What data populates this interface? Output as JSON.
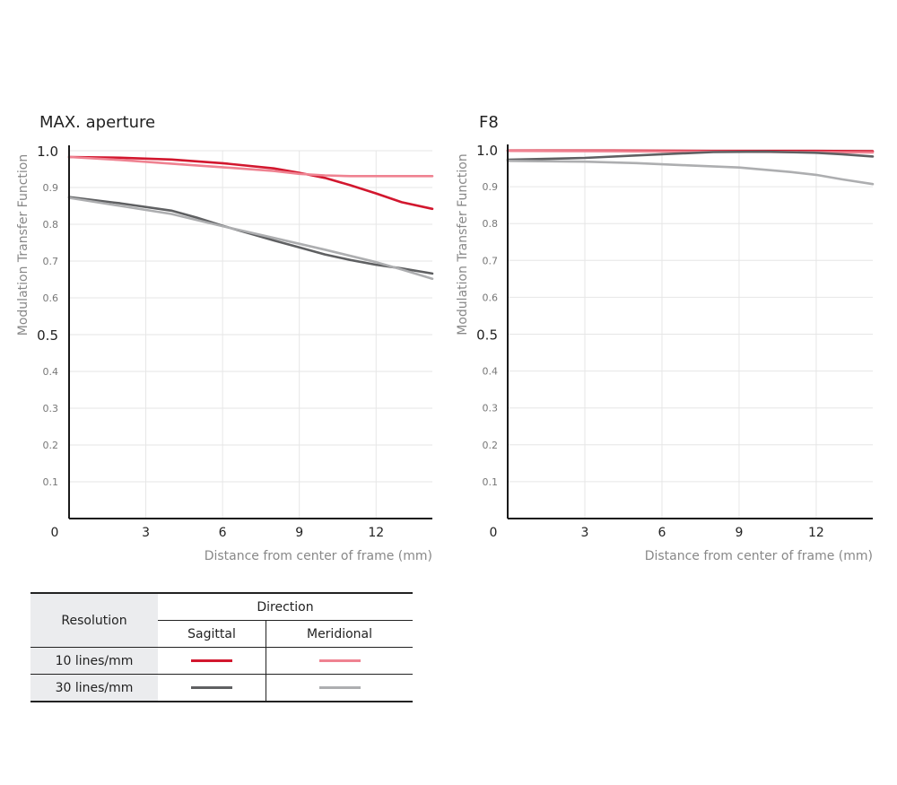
{
  "chart_data": [
    {
      "type": "line",
      "title": "MAX. aperture",
      "ylabel": "Modulation Transfer Function",
      "xlabel": "Distance from center of frame (mm)",
      "xlim": [
        0,
        14.2
      ],
      "ylim": [
        0,
        1.0
      ],
      "x_ticks": [
        "0",
        "3",
        "6",
        "9",
        "12"
      ],
      "y_ticks": [
        "0.1",
        "0.2",
        "0.3",
        "0.4",
        "0.5",
        "0.6",
        "0.7",
        "0.8",
        "0.9",
        "1.0"
      ],
      "grid": true,
      "series": [
        {
          "key": "s10",
          "color": "#d2172e",
          "width": 2.6,
          "x": [
            0,
            2,
            4,
            6,
            8,
            9,
            10,
            11,
            12,
            13,
            14.2
          ],
          "y": [
            0.983,
            0.981,
            0.976,
            0.966,
            0.952,
            0.94,
            0.926,
            0.906,
            0.884,
            0.86,
            0.842
          ]
        },
        {
          "key": "m10",
          "color": "#ef8291",
          "width": 2.6,
          "x": [
            0,
            2,
            4,
            6,
            8,
            9,
            10,
            11,
            12,
            14.2
          ],
          "y": [
            0.983,
            0.975,
            0.965,
            0.955,
            0.945,
            0.937,
            0.933,
            0.931,
            0.931,
            0.931
          ]
        },
        {
          "key": "s30",
          "color": "#5f6062",
          "width": 2.6,
          "x": [
            0,
            2,
            4,
            5,
            6,
            7,
            8,
            9,
            10,
            11,
            12,
            13,
            14.2
          ],
          "y": [
            0.874,
            0.857,
            0.837,
            0.818,
            0.796,
            0.776,
            0.756,
            0.737,
            0.718,
            0.703,
            0.69,
            0.68,
            0.666
          ]
        },
        {
          "key": "m30",
          "color": "#adaeb0",
          "width": 2.6,
          "x": [
            0,
            2,
            4,
            6,
            8,
            10,
            12,
            13,
            14.2
          ],
          "y": [
            0.872,
            0.85,
            0.828,
            0.795,
            0.763,
            0.731,
            0.697,
            0.677,
            0.652
          ]
        }
      ]
    },
    {
      "type": "line",
      "title": "F8",
      "ylabel": "Modulation Transfer Function",
      "xlabel": "Distance from center of frame (mm)",
      "xlim": [
        0,
        14.2
      ],
      "ylim": [
        0,
        1.0
      ],
      "x_ticks": [
        "0",
        "3",
        "6",
        "9",
        "12"
      ],
      "y_ticks": [
        "0.1",
        "0.2",
        "0.3",
        "0.4",
        "0.5",
        "0.6",
        "0.7",
        "0.8",
        "0.9",
        "1.0"
      ],
      "grid": true,
      "series": [
        {
          "key": "s10",
          "color": "#d2172e",
          "width": 2.6,
          "x": [
            0,
            4,
            8,
            12,
            14.2
          ],
          "y": [
            0.998,
            0.998,
            0.997,
            0.997,
            0.996
          ]
        },
        {
          "key": "m10",
          "color": "#ef8291",
          "width": 2.6,
          "x": [
            0,
            4,
            8,
            12,
            14.2
          ],
          "y": [
            0.997,
            0.996,
            0.995,
            0.994,
            0.993
          ]
        },
        {
          "key": "s30",
          "color": "#5f6062",
          "width": 2.6,
          "x": [
            0,
            3,
            6,
            8,
            10,
            12,
            13,
            14.2
          ],
          "y": [
            0.973,
            0.978,
            0.988,
            0.994,
            0.995,
            0.992,
            0.988,
            0.982
          ]
        },
        {
          "key": "m30",
          "color": "#adaeb0",
          "width": 2.6,
          "x": [
            0,
            3,
            5,
            7,
            9,
            10,
            11,
            12,
            13,
            14.2
          ],
          "y": [
            0.97,
            0.968,
            0.964,
            0.958,
            0.952,
            0.946,
            0.94,
            0.932,
            0.92,
            0.907
          ]
        }
      ]
    }
  ],
  "legend": {
    "resolution_header": "Resolution",
    "direction_header": "Direction",
    "sagittal_label": "Sagittal",
    "meridional_label": "Meridional",
    "rows": [
      {
        "label": "10 lines/mm",
        "sagittal_color": "#d2172e",
        "meridional_color": "#ef8291"
      },
      {
        "label": "30 lines/mm",
        "sagittal_color": "#5f6062",
        "meridional_color": "#adaeb0"
      }
    ]
  }
}
